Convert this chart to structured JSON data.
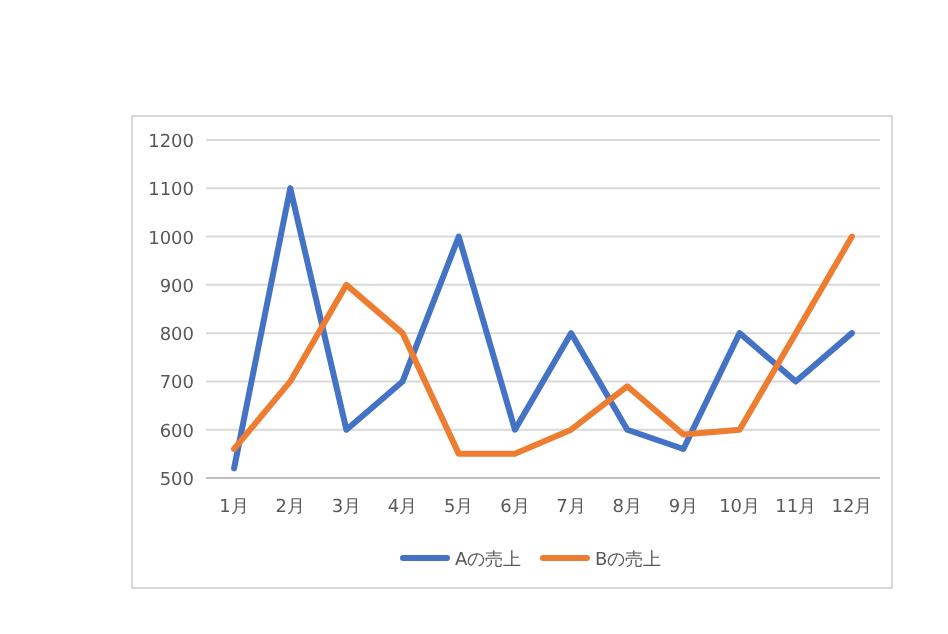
{
  "chart_data": {
    "type": "line",
    "categories": [
      "1月",
      "2月",
      "3月",
      "4月",
      "5月",
      "6月",
      "7月",
      "8月",
      "9月",
      "10月",
      "11月",
      "12月"
    ],
    "series": [
      {
        "name": "Aの売上",
        "color": "#4472c4",
        "values": [
          520,
          1100,
          600,
          700,
          1000,
          600,
          800,
          600,
          560,
          800,
          700,
          800
        ]
      },
      {
        "name": "Bの売上",
        "color": "#ed7d31",
        "values": [
          560,
          700,
          900,
          800,
          550,
          550,
          600,
          690,
          590,
          600,
          800,
          1000
        ]
      }
    ],
    "ylim": [
      500,
      1200
    ],
    "yticks": [
      500,
      600,
      700,
      800,
      900,
      1000,
      1100,
      1200
    ],
    "grid": "y",
    "legend": "bottom",
    "marker": "none",
    "line_style": "solid"
  }
}
